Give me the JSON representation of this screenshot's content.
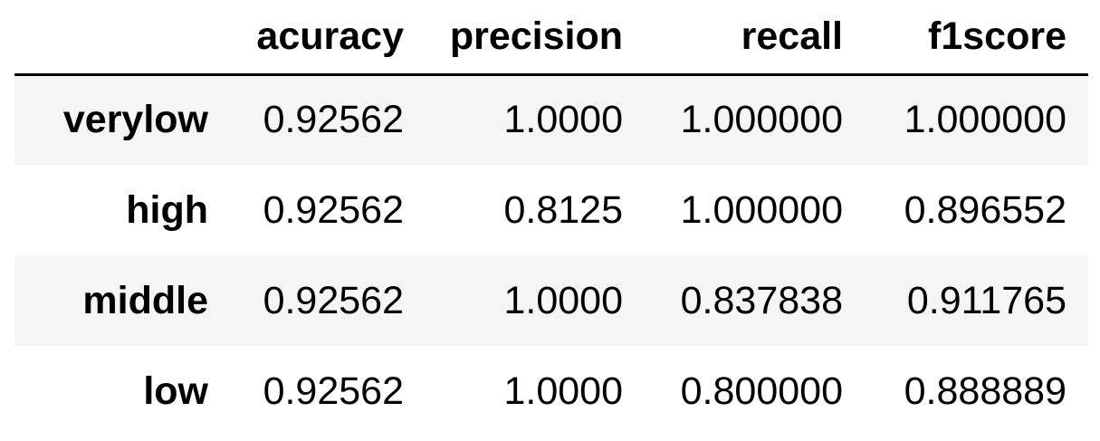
{
  "table": {
    "columns": [
      "acuracy",
      "precision",
      "recall",
      "f1score"
    ],
    "rows": [
      {
        "label": "verylow",
        "values": [
          "0.92562",
          "1.0000",
          "1.000000",
          "1.000000"
        ]
      },
      {
        "label": "high",
        "values": [
          "0.92562",
          "0.8125",
          "1.000000",
          "0.896552"
        ]
      },
      {
        "label": "middle",
        "values": [
          "0.92562",
          "1.0000",
          "0.837838",
          "0.911765"
        ]
      },
      {
        "label": "low",
        "values": [
          "0.92562",
          "1.0000",
          "0.800000",
          "0.888889"
        ]
      }
    ]
  },
  "colors": {
    "stripe": "#f5f5f5",
    "background": "#ffffff",
    "text": "#000000",
    "header_rule": "#000000"
  }
}
